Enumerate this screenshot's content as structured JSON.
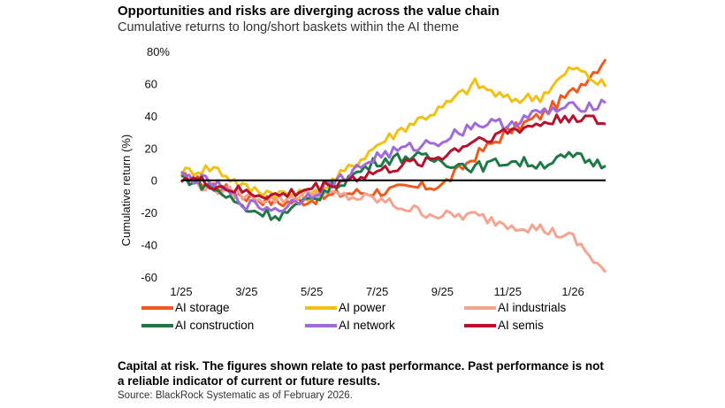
{
  "header": {
    "title": "Opportunities and risks are diverging across the value chain",
    "subtitle": "Cumulative returns to long/short baskets within the AI theme"
  },
  "footer": {
    "disclaimer": "Capital at risk. The figures shown relate to past performance. Past performance is not a reliable indicator of current or future results.",
    "source": "Source: BlackRock Systematic as of February 2026."
  },
  "chart_data": {
    "type": "line",
    "title": "Opportunities and risks are diverging across the value chain",
    "subtitle": "Cumulative returns to long/short baskets within the AI theme",
    "ylabel": "Cumulative return (%)",
    "xlabel": "",
    "ylim": [
      -60,
      80
    ],
    "yticks": [
      -60,
      -40,
      -20,
      0,
      20,
      40,
      60,
      80
    ],
    "ytick_labels": [
      "-60",
      "-40",
      "-20",
      "0",
      "20",
      "40",
      "60",
      "80%"
    ],
    "xticks": [
      "1/25",
      "3/25",
      "5/25",
      "7/25",
      "9/25",
      "11/25",
      "1/26"
    ],
    "zero_line": true,
    "grid": false,
    "legend_position": "bottom",
    "x": [
      "2025-01",
      "2025-02",
      "2025-03",
      "2025-04",
      "2025-05",
      "2025-06",
      "2025-07",
      "2025-08",
      "2025-09",
      "2025-10",
      "2025-11",
      "2025-12",
      "2026-01",
      "2026-02"
    ],
    "series": [
      {
        "name": "AI storage",
        "color": "#f05a1e",
        "values": [
          2,
          -3,
          -10,
          -14,
          -12,
          -8,
          -7,
          -5,
          -3,
          15,
          30,
          40,
          55,
          75
        ]
      },
      {
        "name": "AI power",
        "color": "#f2c010",
        "values": [
          5,
          8,
          -5,
          -8,
          -10,
          5,
          22,
          35,
          45,
          60,
          50,
          52,
          70,
          58
        ]
      },
      {
        "name": "AI industrials",
        "color": "#f4a490",
        "values": [
          0,
          -5,
          -10,
          -12,
          -8,
          -10,
          -12,
          -18,
          -22,
          -22,
          -27,
          -30,
          -36,
          -57
        ]
      },
      {
        "name": "AI construction",
        "color": "#1d7a47",
        "values": [
          2,
          -5,
          -18,
          -22,
          -12,
          0,
          12,
          15,
          12,
          8,
          12,
          10,
          15,
          9
        ]
      },
      {
        "name": "AI network",
        "color": "#a06ad8",
        "values": [
          3,
          -2,
          -15,
          -18,
          -8,
          2,
          15,
          20,
          25,
          35,
          35,
          42,
          45,
          48
        ]
      },
      {
        "name": "AI semis",
        "color": "#b5122e",
        "values": [
          2,
          -3,
          -8,
          -10,
          -5,
          0,
          5,
          10,
          15,
          25,
          30,
          35,
          40,
          35
        ]
      }
    ]
  }
}
